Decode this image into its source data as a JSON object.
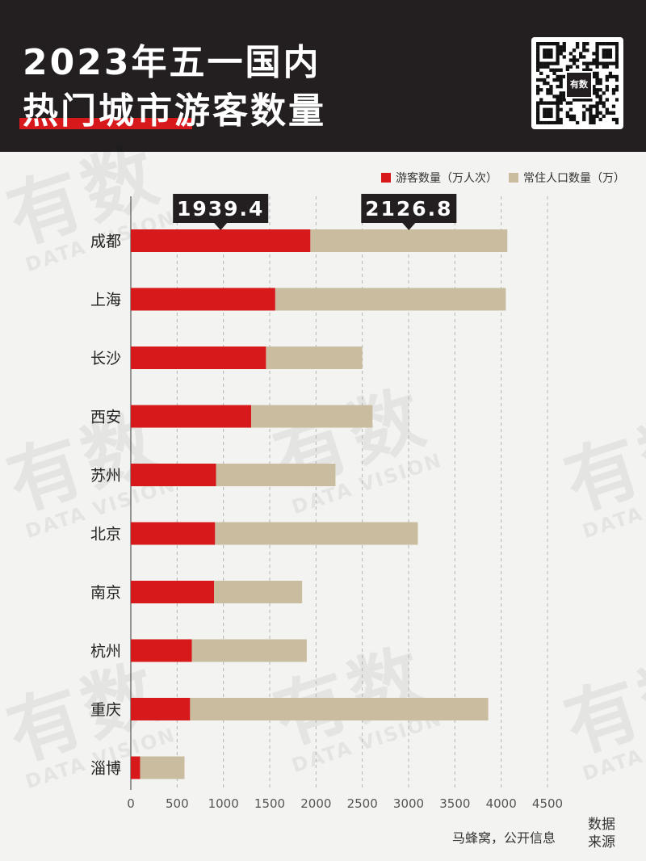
{
  "header": {
    "title_line1": "2023年五一国内",
    "title_line2": "热门城市游客数量",
    "qr_logo": "有数"
  },
  "watermark": {
    "text": "有数",
    "sub": "DATA VISION"
  },
  "legend": {
    "items": [
      {
        "label": "游客数量（万人次）",
        "color": "#d7191c"
      },
      {
        "label": "常住人口数量（万）",
        "color": "#c9bc9f"
      }
    ]
  },
  "source": {
    "text": "马蜂窝，公开信息",
    "tag_line1": "数据",
    "tag_line2": "来源"
  },
  "chart_data": {
    "type": "bar",
    "orientation": "horizontal",
    "stacked": true,
    "categories": [
      "成都",
      "上海",
      "长沙",
      "西安",
      "苏州",
      "北京",
      "南京",
      "杭州",
      "重庆",
      "淄博"
    ],
    "series": [
      {
        "name": "游客数量（万人次）",
        "color": "#d7191c",
        "values": [
          1939.4,
          1560,
          1460,
          1300,
          920,
          910,
          900,
          660,
          640,
          100
        ]
      },
      {
        "name": "常住人口数量（万）",
        "color": "#c9bc9f",
        "values": [
          2126.8,
          2490,
          1040,
          1310,
          1290,
          2190,
          950,
          1240,
          3220,
          480
        ]
      }
    ],
    "annotations": [
      {
        "category": "成都",
        "series": 0,
        "text": "1939.4"
      },
      {
        "category": "成都",
        "series": 1,
        "text": "2126.8"
      }
    ],
    "xlim": [
      0,
      4500
    ],
    "xticks": [
      0,
      500,
      1000,
      1500,
      2000,
      2500,
      3000,
      3500,
      4000,
      4500
    ],
    "grid": true,
    "legend_position": "top-right"
  }
}
